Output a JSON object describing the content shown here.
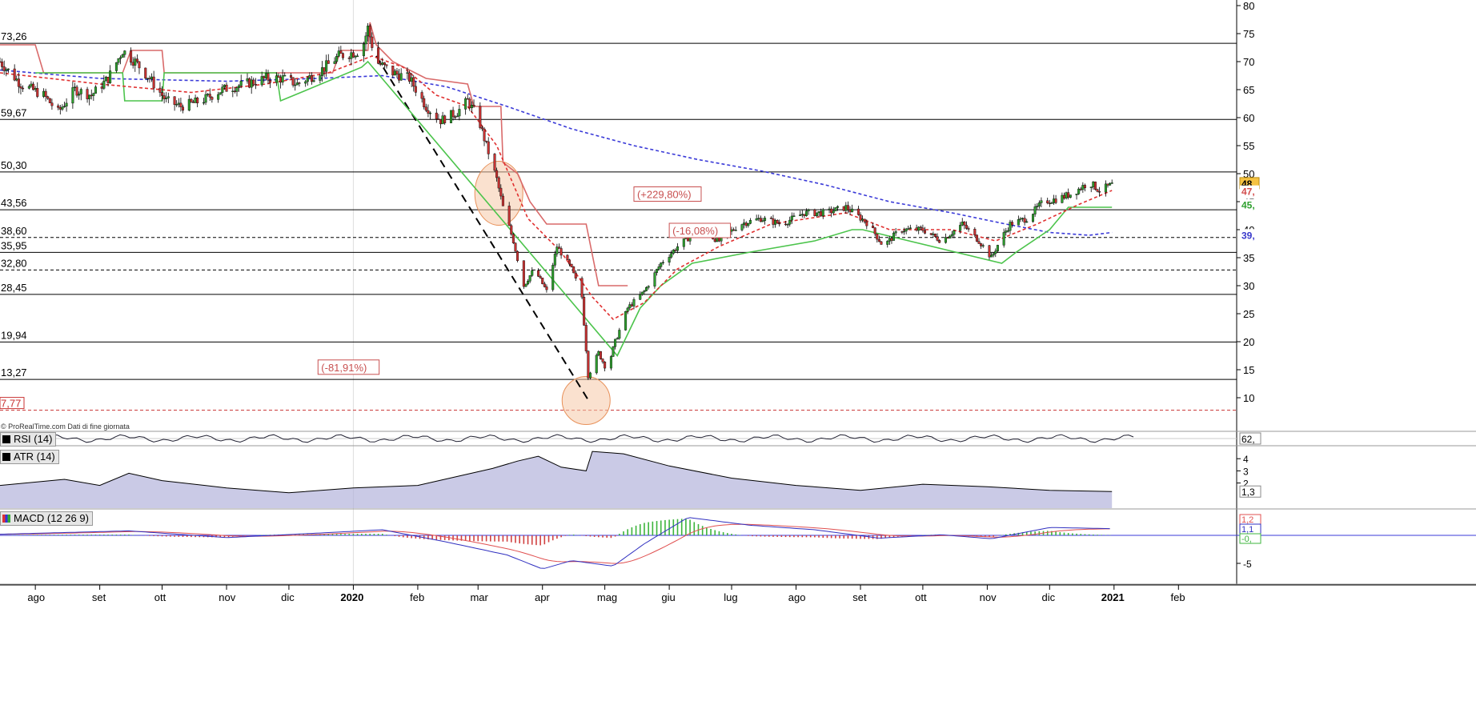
{
  "source_note": "© ProRealTime.com Dati di fine giornata",
  "price_axis_ticks": [
    80,
    75,
    70,
    65,
    60,
    55,
    50,
    45,
    40,
    35,
    30,
    25,
    20,
    15,
    10
  ],
  "horizontal_levels": [
    {
      "label": "73,26",
      "value": 73.26,
      "style": "solid"
    },
    {
      "label": "59,67",
      "value": 59.67,
      "style": "solid"
    },
    {
      "label": "50,30",
      "value": 50.3,
      "style": "solid"
    },
    {
      "label": "43,56",
      "value": 43.56,
      "style": "solid"
    },
    {
      "label": "38,60",
      "value": 38.6,
      "style": "dashed"
    },
    {
      "label": "35,95",
      "value": 35.95,
      "style": "solid"
    },
    {
      "label": "32,80",
      "value": 32.8,
      "style": "dashed"
    },
    {
      "label": "28,45",
      "value": 28.45,
      "style": "solid"
    },
    {
      "label": "19,94",
      "value": 19.94,
      "style": "solid"
    },
    {
      "label": "13,27",
      "value": 13.27,
      "style": "solid"
    },
    {
      "label": "7,77",
      "value": 7.77,
      "style": "red-dashed"
    }
  ],
  "right_markers": [
    {
      "label": "48",
      "value": 48.3,
      "bg": "#f5c242",
      "fg": "#000000"
    },
    {
      "label": "47,",
      "value": 46.9,
      "bg": "#ffffff",
      "fg": "#d24b4b"
    },
    {
      "label": "45,",
      "value": 44.5,
      "bg": "#ffffff",
      "fg": "#2ea02e"
    },
    {
      "label": "39,",
      "value": 39.1,
      "bg": "#ffffff",
      "fg": "#3a3acc"
    }
  ],
  "annotations": [
    {
      "text": "(-81,91%)",
      "date": "2019-12-15",
      "price": 14.6
    },
    {
      "text": "(+229,80%)",
      "date": "2020-05-15",
      "price": 45.5
    },
    {
      "text": "(-16,08%)",
      "date": "2020-06-01",
      "price": 39.0
    }
  ],
  "time_axis": [
    {
      "label": "ago",
      "date": "2019-08-01",
      "bold": false
    },
    {
      "label": "set",
      "date": "2019-09-01",
      "bold": false
    },
    {
      "label": "ott",
      "date": "2019-10-01",
      "bold": false
    },
    {
      "label": "nov",
      "date": "2019-11-01",
      "bold": false
    },
    {
      "label": "dic",
      "date": "2019-12-01",
      "bold": false
    },
    {
      "label": "2020",
      "date": "2020-01-01",
      "bold": true
    },
    {
      "label": "feb",
      "date": "2020-02-01",
      "bold": false
    },
    {
      "label": "mar",
      "date": "2020-03-01",
      "bold": false
    },
    {
      "label": "apr",
      "date": "2020-04-01",
      "bold": false
    },
    {
      "label": "mag",
      "date": "2020-05-01",
      "bold": false
    },
    {
      "label": "giu",
      "date": "2020-06-01",
      "bold": false
    },
    {
      "label": "lug",
      "date": "2020-07-01",
      "bold": false
    },
    {
      "label": "ago",
      "date": "2020-08-01",
      "bold": false
    },
    {
      "label": "set",
      "date": "2020-09-01",
      "bold": false
    },
    {
      "label": "ott",
      "date": "2020-10-01",
      "bold": false
    },
    {
      "label": "nov",
      "date": "2020-11-01",
      "bold": false
    },
    {
      "label": "dic",
      "date": "2020-12-01",
      "bold": false
    },
    {
      "label": "2021",
      "date": "2021-01-01",
      "bold": true
    },
    {
      "label": "feb",
      "date": "2021-02-01",
      "bold": false
    }
  ],
  "indicators": {
    "rsi": {
      "label": "RSI (14)",
      "value_label": "62,"
    },
    "atr": {
      "label": "ATR (14)",
      "ticks": [
        "4",
        "3",
        "2"
      ],
      "value_label": "1,3"
    },
    "macd": {
      "label": "MACD (12 26 9)",
      "ticks": [
        "-5"
      ],
      "value_labels": [
        "1,2",
        "1,1",
        "-0,"
      ]
    }
  },
  "colors": {
    "candle_up": "#2e9e2e",
    "candle_down": "#c83232",
    "trail_red": "#d96a6a",
    "trail_green": "#4cc44c",
    "ma_red": "#e03030",
    "ma_blue": "#3a3ad8",
    "circle_fill": "#f6c8a8",
    "circle_stroke": "#e8915a",
    "annotation": "#c85050",
    "atr_fill": "#b4b4dc"
  },
  "chart_data": {
    "type": "candlestick",
    "x_range": [
      "2019-07-15",
      "2021-03-01"
    ],
    "y_range": [
      5,
      81
    ],
    "close_path": [
      [
        "2019-07-15",
        70
      ],
      [
        "2019-07-25",
        66
      ],
      [
        "2019-08-05",
        64
      ],
      [
        "2019-08-12",
        61
      ],
      [
        "2019-08-20",
        65
      ],
      [
        "2019-08-28",
        64
      ],
      [
        "2019-09-05",
        67
      ],
      [
        "2019-09-12",
        72
      ],
      [
        "2019-09-18",
        70
      ],
      [
        "2019-09-25",
        67
      ],
      [
        "2019-10-03",
        63
      ],
      [
        "2019-10-10",
        62
      ],
      [
        "2019-10-20",
        63
      ],
      [
        "2019-10-30",
        65
      ],
      [
        "2019-11-10",
        66
      ],
      [
        "2019-11-20",
        67
      ],
      [
        "2019-11-28",
        67
      ],
      [
        "2019-12-05",
        66
      ],
      [
        "2019-12-15",
        68
      ],
      [
        "2019-12-25",
        71
      ],
      [
        "2020-01-05",
        72
      ],
      [
        "2020-01-08",
        76
      ],
      [
        "2020-01-12",
        70
      ],
      [
        "2020-01-20",
        68
      ],
      [
        "2020-01-28",
        67
      ],
      [
        "2020-02-05",
        62
      ],
      [
        "2020-02-12",
        59.5
      ],
      [
        "2020-02-20",
        61
      ],
      [
        "2020-02-25",
        63
      ],
      [
        "2020-03-01",
        60
      ],
      [
        "2020-03-05",
        55
      ],
      [
        "2020-03-10",
        49
      ],
      [
        "2020-03-13",
        44
      ],
      [
        "2020-03-18",
        38
      ],
      [
        "2020-03-23",
        30
      ],
      [
        "2020-03-28",
        33
      ],
      [
        "2020-04-03",
        29
      ],
      [
        "2020-04-08",
        37
      ],
      [
        "2020-04-15",
        33
      ],
      [
        "2020-04-20",
        28
      ],
      [
        "2020-04-23",
        14
      ],
      [
        "2020-04-28",
        18
      ],
      [
        "2020-05-02",
        15
      ],
      [
        "2020-05-06",
        20
      ],
      [
        "2020-05-12",
        26
      ],
      [
        "2020-05-20",
        29
      ],
      [
        "2020-05-28",
        34
      ],
      [
        "2020-06-05",
        37
      ],
      [
        "2020-06-15",
        40
      ],
      [
        "2020-06-25",
        38
      ],
      [
        "2020-07-05",
        41
      ],
      [
        "2020-07-15",
        42
      ],
      [
        "2020-07-25",
        41
      ],
      [
        "2020-08-05",
        43
      ],
      [
        "2020-08-15",
        43
      ],
      [
        "2020-08-25",
        44
      ],
      [
        "2020-09-05",
        41
      ],
      [
        "2020-09-12",
        37
      ],
      [
        "2020-09-20",
        40
      ],
      [
        "2020-10-01",
        40
      ],
      [
        "2020-10-10",
        38
      ],
      [
        "2020-10-20",
        41
      ],
      [
        "2020-10-28",
        38
      ],
      [
        "2020-11-03",
        35
      ],
      [
        "2020-11-07",
        38
      ],
      [
        "2020-11-12",
        41
      ],
      [
        "2020-11-20",
        42
      ],
      [
        "2020-11-28",
        45
      ],
      [
        "2020-12-05",
        45.5
      ],
      [
        "2020-12-12",
        46.5
      ],
      [
        "2020-12-20",
        48.5
      ],
      [
        "2020-12-25",
        47
      ],
      [
        "2020-12-31",
        48
      ]
    ],
    "ma_red_path": [
      [
        "2019-07-15",
        68
      ],
      [
        "2019-09-01",
        66
      ],
      [
        "2019-10-15",
        64.5
      ],
      [
        "2019-11-20",
        66
      ],
      [
        "2019-12-20",
        68
      ],
      [
        "2020-01-10",
        71
      ],
      [
        "2020-01-25",
        69
      ],
      [
        "2020-02-10",
        64
      ],
      [
        "2020-02-25",
        62
      ],
      [
        "2020-03-10",
        55
      ],
      [
        "2020-03-25",
        42
      ],
      [
        "2020-04-10",
        36
      ],
      [
        "2020-04-25",
        28
      ],
      [
        "2020-05-05",
        24
      ],
      [
        "2020-05-20",
        27
      ],
      [
        "2020-06-05",
        33
      ],
      [
        "2020-06-25",
        37
      ],
      [
        "2020-07-20",
        41
      ],
      [
        "2020-08-25",
        43
      ],
      [
        "2020-09-15",
        40
      ],
      [
        "2020-10-15",
        40
      ],
      [
        "2020-11-05",
        38
      ],
      [
        "2020-11-25",
        41
      ],
      [
        "2020-12-15",
        44.5
      ],
      [
        "2020-12-31",
        47
      ]
    ],
    "ma_blue_path": [
      [
        "2019-07-15",
        68.5
      ],
      [
        "2019-09-01",
        67
      ],
      [
        "2019-11-01",
        66.5
      ],
      [
        "2019-12-15",
        67
      ],
      [
        "2020-01-15",
        67.5
      ],
      [
        "2020-02-15",
        65.5
      ],
      [
        "2020-03-15",
        62
      ],
      [
        "2020-04-15",
        58
      ],
      [
        "2020-05-15",
        55
      ],
      [
        "2020-06-15",
        52.5
      ],
      [
        "2020-07-15",
        50.5
      ],
      [
        "2020-08-15",
        48
      ],
      [
        "2020-09-15",
        45
      ],
      [
        "2020-10-15",
        43
      ],
      [
        "2020-11-10",
        41
      ],
      [
        "2020-12-01",
        39.5
      ],
      [
        "2020-12-20",
        39
      ],
      [
        "2020-12-31",
        39.5
      ]
    ],
    "trail_red_path": [
      [
        "2019-07-15",
        73
      ],
      [
        "2019-08-01",
        73
      ],
      [
        "2019-08-05",
        68
      ],
      [
        "2019-09-12",
        68
      ],
      [
        "2019-09-16",
        72
      ],
      [
        "2019-10-01",
        72
      ],
      [
        "2019-10-02",
        68
      ],
      [
        "2019-12-22",
        68
      ],
      [
        "2019-12-26",
        72
      ],
      [
        "2020-01-08",
        72
      ],
      [
        "2020-01-09",
        77
      ],
      [
        "2020-01-12",
        73
      ],
      [
        "2020-01-20",
        70
      ],
      [
        "2020-02-05",
        67
      ],
      [
        "2020-02-25",
        66
      ],
      [
        "2020-02-28",
        62
      ],
      [
        "2020-03-12",
        62
      ],
      [
        "2020-03-13",
        52
      ],
      [
        "2020-03-20",
        50
      ],
      [
        "2020-03-26",
        45
      ],
      [
        "2020-04-03",
        41
      ],
      [
        "2020-04-22",
        41
      ],
      [
        "2020-04-28",
        30
      ],
      [
        "2020-05-12",
        30
      ]
    ],
    "trail_green_path": [
      [
        "2019-08-01",
        68
      ],
      [
        "2019-09-12",
        68
      ],
      [
        "2019-09-13",
        63
      ],
      [
        "2019-10-01",
        63
      ],
      [
        "2019-10-02",
        68
      ],
      [
        "2019-11-25",
        68
      ],
      [
        "2019-11-27",
        63
      ],
      [
        "2019-12-10",
        65
      ],
      [
        "2020-01-05",
        69
      ],
      [
        "2020-01-08",
        70
      ],
      [
        "2020-05-07",
        17.5
      ],
      [
        "2020-05-18",
        26
      ],
      [
        "2020-05-28",
        30
      ],
      [
        "2020-06-12",
        34
      ],
      [
        "2020-07-10",
        36
      ],
      [
        "2020-08-10",
        38
      ],
      [
        "2020-08-28",
        40
      ],
      [
        "2020-09-02",
        40
      ],
      [
        "2020-11-08",
        34
      ],
      [
        "2020-11-15",
        36
      ],
      [
        "2020-12-01",
        40
      ],
      [
        "2020-12-10",
        44
      ],
      [
        "2020-12-31",
        44
      ]
    ],
    "crash_trendline": [
      [
        "2020-01-12",
        71
      ],
      [
        "2020-04-24",
        9
      ]
    ],
    "highlight_circles": [
      {
        "date": "2020-03-11",
        "price": 46.5
      },
      {
        "date": "2020-04-22",
        "price": 9.5
      }
    ],
    "atr_path": [
      [
        "2019-07-15",
        1.8
      ],
      [
        "2019-08-15",
        2.3
      ],
      [
        "2019-09-01",
        1.8
      ],
      [
        "2019-09-15",
        2.8
      ],
      [
        "2019-10-01",
        2.2
      ],
      [
        "2019-11-01",
        1.6
      ],
      [
        "2019-12-01",
        1.2
      ],
      [
        "2020-01-01",
        1.6
      ],
      [
        "2020-02-01",
        1.8
      ],
      [
        "2020-03-08",
        3.2
      ],
      [
        "2020-03-20",
        3.8
      ],
      [
        "2020-03-30",
        4.2
      ],
      [
        "2020-04-10",
        3.3
      ],
      [
        "2020-04-22",
        3.0
      ],
      [
        "2020-04-25",
        4.6
      ],
      [
        "2020-05-10",
        4.4
      ],
      [
        "2020-06-01",
        3.4
      ],
      [
        "2020-07-01",
        2.4
      ],
      [
        "2020-08-01",
        1.8
      ],
      [
        "2020-09-01",
        1.4
      ],
      [
        "2020-10-01",
        1.9
      ],
      [
        "2020-11-01",
        1.7
      ],
      [
        "2020-12-01",
        1.4
      ],
      [
        "2020-12-31",
        1.3
      ]
    ],
    "macd_path": [
      [
        "2019-07-15",
        0.2
      ],
      [
        "2019-09-15",
        0.8
      ],
      [
        "2019-11-01",
        -0.4
      ],
      [
        "2019-12-15",
        0.4
      ],
      [
        "2020-01-15",
        1.0
      ],
      [
        "2020-02-15",
        -1.2
      ],
      [
        "2020-03-15",
        -3.5
      ],
      [
        "2020-04-01",
        -6.0
      ],
      [
        "2020-04-15",
        -4.5
      ],
      [
        "2020-05-05",
        -5.5
      ],
      [
        "2020-05-20",
        -1.5
      ],
      [
        "2020-06-10",
        3.2
      ],
      [
        "2020-07-10",
        1.8
      ],
      [
        "2020-08-10",
        1.0
      ],
      [
        "2020-09-10",
        -0.5
      ],
      [
        "2020-10-10",
        0.1
      ],
      [
        "2020-11-03",
        -0.6
      ],
      [
        "2020-12-01",
        1.4
      ],
      [
        "2020-12-31",
        1.2
      ]
    ]
  }
}
